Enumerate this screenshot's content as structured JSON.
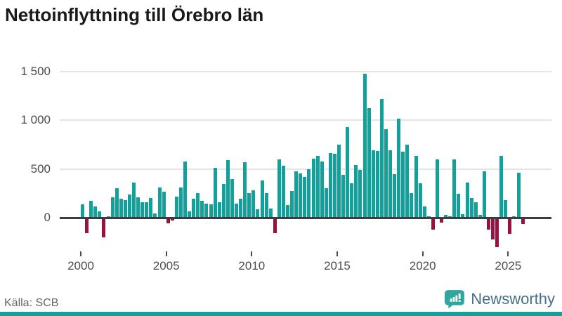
{
  "title": "Nettoinflyttning till Örebro län",
  "source": "Källa: SCB",
  "branding": {
    "logo_text": "Newsworthy",
    "logo_icon": "bar-chart-speech-bubble-icon",
    "logo_color": "#2fa69e",
    "text_color": "#44708e"
  },
  "colors": {
    "positive_bar": "#12a19a",
    "negative_bar": "#97123f",
    "gridline": "#e4e4e4",
    "zero_line": "#3d3d3d",
    "axis_text": "#4d4d4d",
    "title_text": "#1a1a1a"
  },
  "chart_data": {
    "type": "bar",
    "title": "Nettoinflyttning till Örebro län",
    "xlabel": "",
    "ylabel": "",
    "frequency": "quarterly",
    "start": "2000Q1",
    "end": "2025Q4",
    "ylim": [
      -320,
      1560
    ],
    "grid": true,
    "yticks": [
      {
        "value": 0,
        "label": "0"
      },
      {
        "value": 500,
        "label": "500"
      },
      {
        "value": 1000,
        "label": "1 000"
      },
      {
        "value": 1500,
        "label": "1 500"
      }
    ],
    "xticks": [
      {
        "value": 2000,
        "label": "2000"
      },
      {
        "value": 2005,
        "label": "2005"
      },
      {
        "value": 2010,
        "label": "2010"
      },
      {
        "value": 2015,
        "label": "2015"
      },
      {
        "value": 2020,
        "label": "2020"
      },
      {
        "value": 2025,
        "label": "2025"
      }
    ],
    "series": [
      {
        "name": "Nettoinflyttning",
        "values": [
          130,
          -150,
          165,
          105,
          60,
          -190,
          10,
          200,
          295,
          190,
          175,
          230,
          355,
          200,
          150,
          150,
          195,
          40,
          300,
          260,
          -45,
          -15,
          210,
          300,
          570,
          55,
          190,
          245,
          165,
          140,
          130,
          505,
          150,
          340,
          585,
          390,
          140,
          185,
          560,
          245,
          275,
          80,
          375,
          245,
          90,
          -145,
          595,
          525,
          120,
          270,
          470,
          445,
          410,
          490,
          600,
          625,
          570,
          295,
          660,
          650,
          745,
          435,
          920,
          345,
          535,
          480,
          1470,
          1115,
          685,
          675,
          1215,
          905,
          685,
          440,
          1010,
          670,
          740,
          245,
          625,
          345,
          105,
          5,
          -110,
          595,
          -40,
          20,
          5,
          595,
          240,
          30,
          355,
          195,
          155,
          20,
          470,
          -115,
          -215,
          -290,
          630,
          175,
          -155,
          10,
          455,
          -55
        ]
      }
    ]
  }
}
